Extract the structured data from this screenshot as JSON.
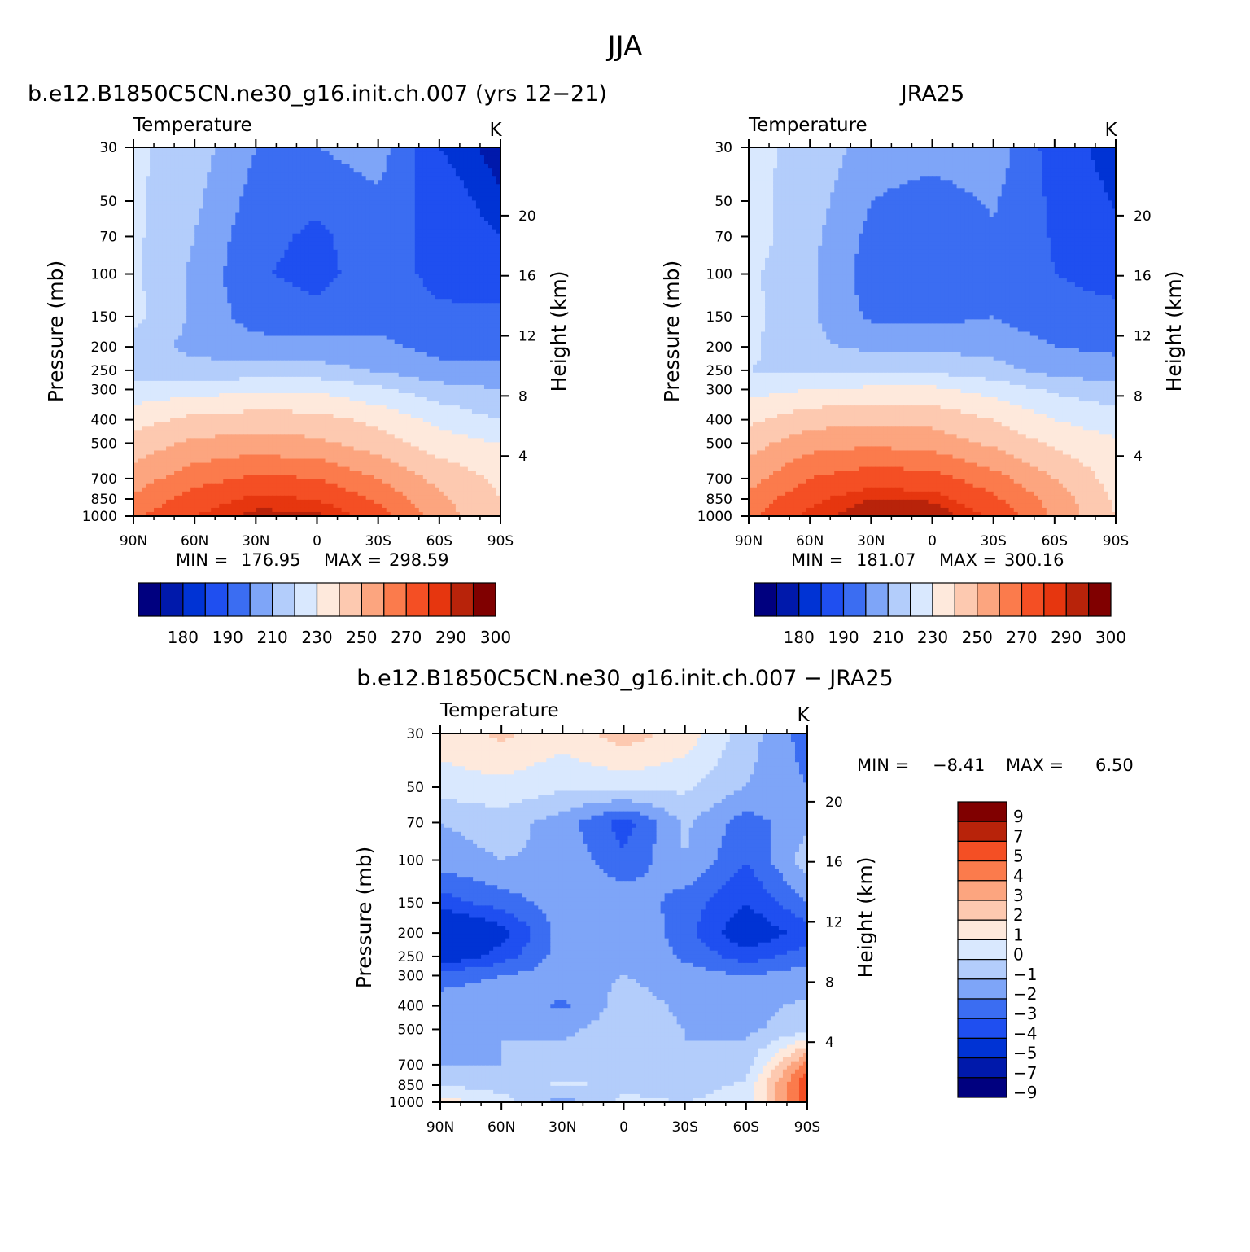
{
  "figure": {
    "title": "JJA"
  },
  "colors": {
    "temperature_levels": [
      "#00007f",
      "#0019ab",
      "#0033d4",
      "#1f4ff0",
      "#3b6df2",
      "#7ea5f8",
      "#b3cdfb",
      "#d9e8fe",
      "#fee9dc",
      "#fdc9b0",
      "#fca57f",
      "#fb7b4c",
      "#f44f24",
      "#e6360f",
      "#b8230a",
      "#800000"
    ],
    "difference_levels": [
      "#00007f",
      "#0019ab",
      "#0033d4",
      "#1f4ff0",
      "#3b6df2",
      "#7ea5f8",
      "#b3cdfb",
      "#d9e8fe",
      "#fee9dc",
      "#fdc9b0",
      "#fca57f",
      "#fb7b4c",
      "#f44f24",
      "#b8230a",
      "#800000"
    ]
  },
  "chart_data": [
    {
      "type": "heatmap",
      "panel_title": "b.e12.B1850C5CN.ne30_g16.init.ch.007 (yrs 12−21)",
      "left_label": "Temperature",
      "right_label": "K",
      "ylabel": "Pressure (mb)",
      "ylabel_right": "Height (km)",
      "x_ticks": [
        "90N",
        "60N",
        "30N",
        "0",
        "30S",
        "60S",
        "90S"
      ],
      "y_ticks": [
        "30",
        "50",
        "70",
        "100",
        "150",
        "200",
        "250",
        "300",
        "400",
        "500",
        "700",
        "850",
        "1000"
      ],
      "y_ticks_right": [
        "20",
        "16",
        "12",
        "8",
        "4"
      ],
      "min_label": "MIN =",
      "min_value": "176.95",
      "max_label": "MAX =",
      "max_value": "298.59",
      "colorbar_labels": [
        "180",
        "190",
        "210",
        "230",
        "250",
        "270",
        "290",
        "300"
      ],
      "levels": [
        175,
        180,
        185,
        190,
        200,
        210,
        220,
        230,
        240,
        250,
        260,
        270,
        280,
        290,
        295,
        300,
        305
      ],
      "x": [
        -90,
        -60,
        -30,
        0,
        30,
        60,
        90
      ],
      "y_pressure": [
        30,
        50,
        70,
        100,
        150,
        200,
        250,
        300,
        400,
        500,
        700,
        850,
        1000
      ],
      "z": [
        [
          232,
          225,
          210,
          210,
          215,
          190,
          182
        ],
        [
          232,
          222,
          206,
          202,
          208,
          195,
          186
        ],
        [
          232,
          220,
          203,
          198,
          206,
          196,
          190
        ],
        [
          232,
          218,
          201,
          197,
          205,
          197,
          195
        ],
        [
          233,
          218,
          205,
          203,
          207,
          202,
          202
        ],
        [
          225,
          217,
          214,
          214,
          212,
          207,
          207
        ],
        [
          226,
          224,
          224,
          224,
          219,
          213,
          213
        ],
        [
          234,
          236,
          238,
          238,
          232,
          224,
          220
        ],
        [
          246,
          253,
          255,
          254,
          247,
          237,
          230
        ],
        [
          254,
          262,
          264,
          262,
          255,
          245,
          240
        ],
        [
          265,
          276,
          282,
          280,
          270,
          257,
          248
        ],
        [
          272,
          285,
          292,
          290,
          278,
          262,
          250
        ],
        [
          278,
          290,
          297,
          297,
          285,
          265,
          250
        ]
      ]
    },
    {
      "type": "heatmap",
      "panel_title": "JRA25",
      "left_label": "Temperature",
      "right_label": "K",
      "ylabel": "Pressure (mb)",
      "ylabel_right": "Height (km)",
      "x_ticks": [
        "90N",
        "60N",
        "30N",
        "0",
        "30S",
        "60S",
        "90S"
      ],
      "y_ticks": [
        "30",
        "50",
        "70",
        "100",
        "150",
        "200",
        "250",
        "300",
        "400",
        "500",
        "700",
        "850",
        "1000"
      ],
      "y_ticks_right": [
        "20",
        "16",
        "12",
        "8",
        "4"
      ],
      "min_label": "MIN =",
      "min_value": "181.07",
      "max_label": "MAX =",
      "max_value": "300.16",
      "colorbar_labels": [
        "180",
        "190",
        "210",
        "230",
        "250",
        "270",
        "290",
        "300"
      ],
      "levels": [
        175,
        180,
        185,
        190,
        200,
        210,
        220,
        230,
        240,
        250,
        260,
        270,
        280,
        290,
        295,
        300,
        305
      ],
      "x": [
        -90,
        -60,
        -30,
        0,
        30,
        60,
        90
      ],
      "y_pressure": [
        30,
        50,
        70,
        100,
        150,
        200,
        250,
        300,
        400,
        500,
        700,
        850,
        1000
      ],
      "z": [
        [
          232,
          228,
          215,
          214,
          216,
          195,
          186
        ],
        [
          233,
          225,
          210,
          206,
          211,
          198,
          189
        ],
        [
          235,
          223,
          207,
          203,
          209,
          199,
          193
        ],
        [
          232,
          222,
          205,
          201,
          208,
          200,
          196
        ],
        [
          233,
          222,
          208,
          207,
          210,
          204,
          203
        ],
        [
          232,
          222,
          218,
          218,
          216,
          210,
          208
        ],
        [
          230,
          228,
          228,
          228,
          224,
          216,
          214
        ],
        [
          236,
          240,
          242,
          242,
          236,
          228,
          224
        ],
        [
          248,
          256,
          258,
          257,
          250,
          240,
          234
        ],
        [
          256,
          266,
          268,
          266,
          258,
          248,
          242
        ],
        [
          266,
          280,
          286,
          284,
          274,
          260,
          246
        ],
        [
          273,
          288,
          295,
          294,
          282,
          266,
          248
        ],
        [
          278,
          292,
          300,
          300,
          288,
          268,
          250
        ]
      ]
    },
    {
      "type": "heatmap",
      "panel_title": "b.e12.B1850C5CN.ne30_g16.init.ch.007 − JRA25",
      "left_label": "Temperature",
      "right_label": "K",
      "ylabel": "Pressure (mb)",
      "ylabel_right": "Height (km)",
      "x_ticks": [
        "90N",
        "60N",
        "30N",
        "0",
        "30S",
        "60S",
        "90S"
      ],
      "y_ticks": [
        "30",
        "50",
        "70",
        "100",
        "150",
        "200",
        "250",
        "300",
        "400",
        "500",
        "700",
        "850",
        "1000"
      ],
      "y_ticks_right": [
        "20",
        "16",
        "12",
        "8",
        "4"
      ],
      "min_label": "MIN =",
      "min_value": "−8.41",
      "max_label": "MAX =",
      "max_value": "6.50",
      "colorbar_labels": [
        "9",
        "7",
        "5",
        "4",
        "3",
        "2",
        "1",
        "0",
        "−1",
        "−2",
        "−3",
        "−4",
        "−5",
        "−7",
        "−9"
      ],
      "levels": [
        -11,
        -9,
        -7,
        -5,
        -4,
        -3,
        -2,
        -1,
        0,
        1,
        2,
        3,
        4,
        5,
        7,
        9,
        11
      ],
      "x": [
        -90,
        -60,
        -30,
        0,
        30,
        60,
        90
      ],
      "y_pressure": [
        30,
        50,
        70,
        100,
        150,
        200,
        250,
        300,
        400,
        500,
        700,
        850,
        1000
      ],
      "z": [
        [
          0.5,
          1.2,
          0.4,
          1.5,
          0.6,
          -1.5,
          -3.5
        ],
        [
          -0.5,
          -0.3,
          -0.8,
          -0.6,
          -0.8,
          -2.0,
          -3.0
        ],
        [
          -2.0,
          -1.5,
          -2.5,
          -4.5,
          -1.8,
          -3.5,
          -2.2
        ],
        [
          -2.5,
          -2.0,
          -2.2,
          -3.8,
          -2.0,
          -4.0,
          -1.5
        ],
        [
          -4.5,
          -3.5,
          -2.5,
          -2.2,
          -3.5,
          -5.0,
          -3.0
        ],
        [
          -7.0,
          -5.5,
          -2.5,
          -2.0,
          -3.5,
          -6.0,
          -4.5
        ],
        [
          -6.0,
          -4.5,
          -2.5,
          -2.0,
          -3.2,
          -4.5,
          -3.5
        ],
        [
          -3.5,
          -3.0,
          -2.5,
          -2.0,
          -2.5,
          -3.0,
          -2.5
        ],
        [
          -2.5,
          -2.2,
          -3.2,
          -1.5,
          -2.2,
          -2.3,
          -1.8
        ],
        [
          -2.3,
          -2.0,
          -2.2,
          -1.5,
          -2.0,
          -2.2,
          -1.5
        ],
        [
          -2.0,
          -2.0,
          -1.6,
          -1.4,
          -2.0,
          -1.5,
          3.5
        ],
        [
          -1.0,
          -1.5,
          -0.8,
          -1.2,
          -1.5,
          -0.8,
          5.0
        ],
        [
          0.5,
          -0.5,
          -2.5,
          -0.8,
          -1.0,
          -0.5,
          4.5
        ]
      ]
    }
  ]
}
